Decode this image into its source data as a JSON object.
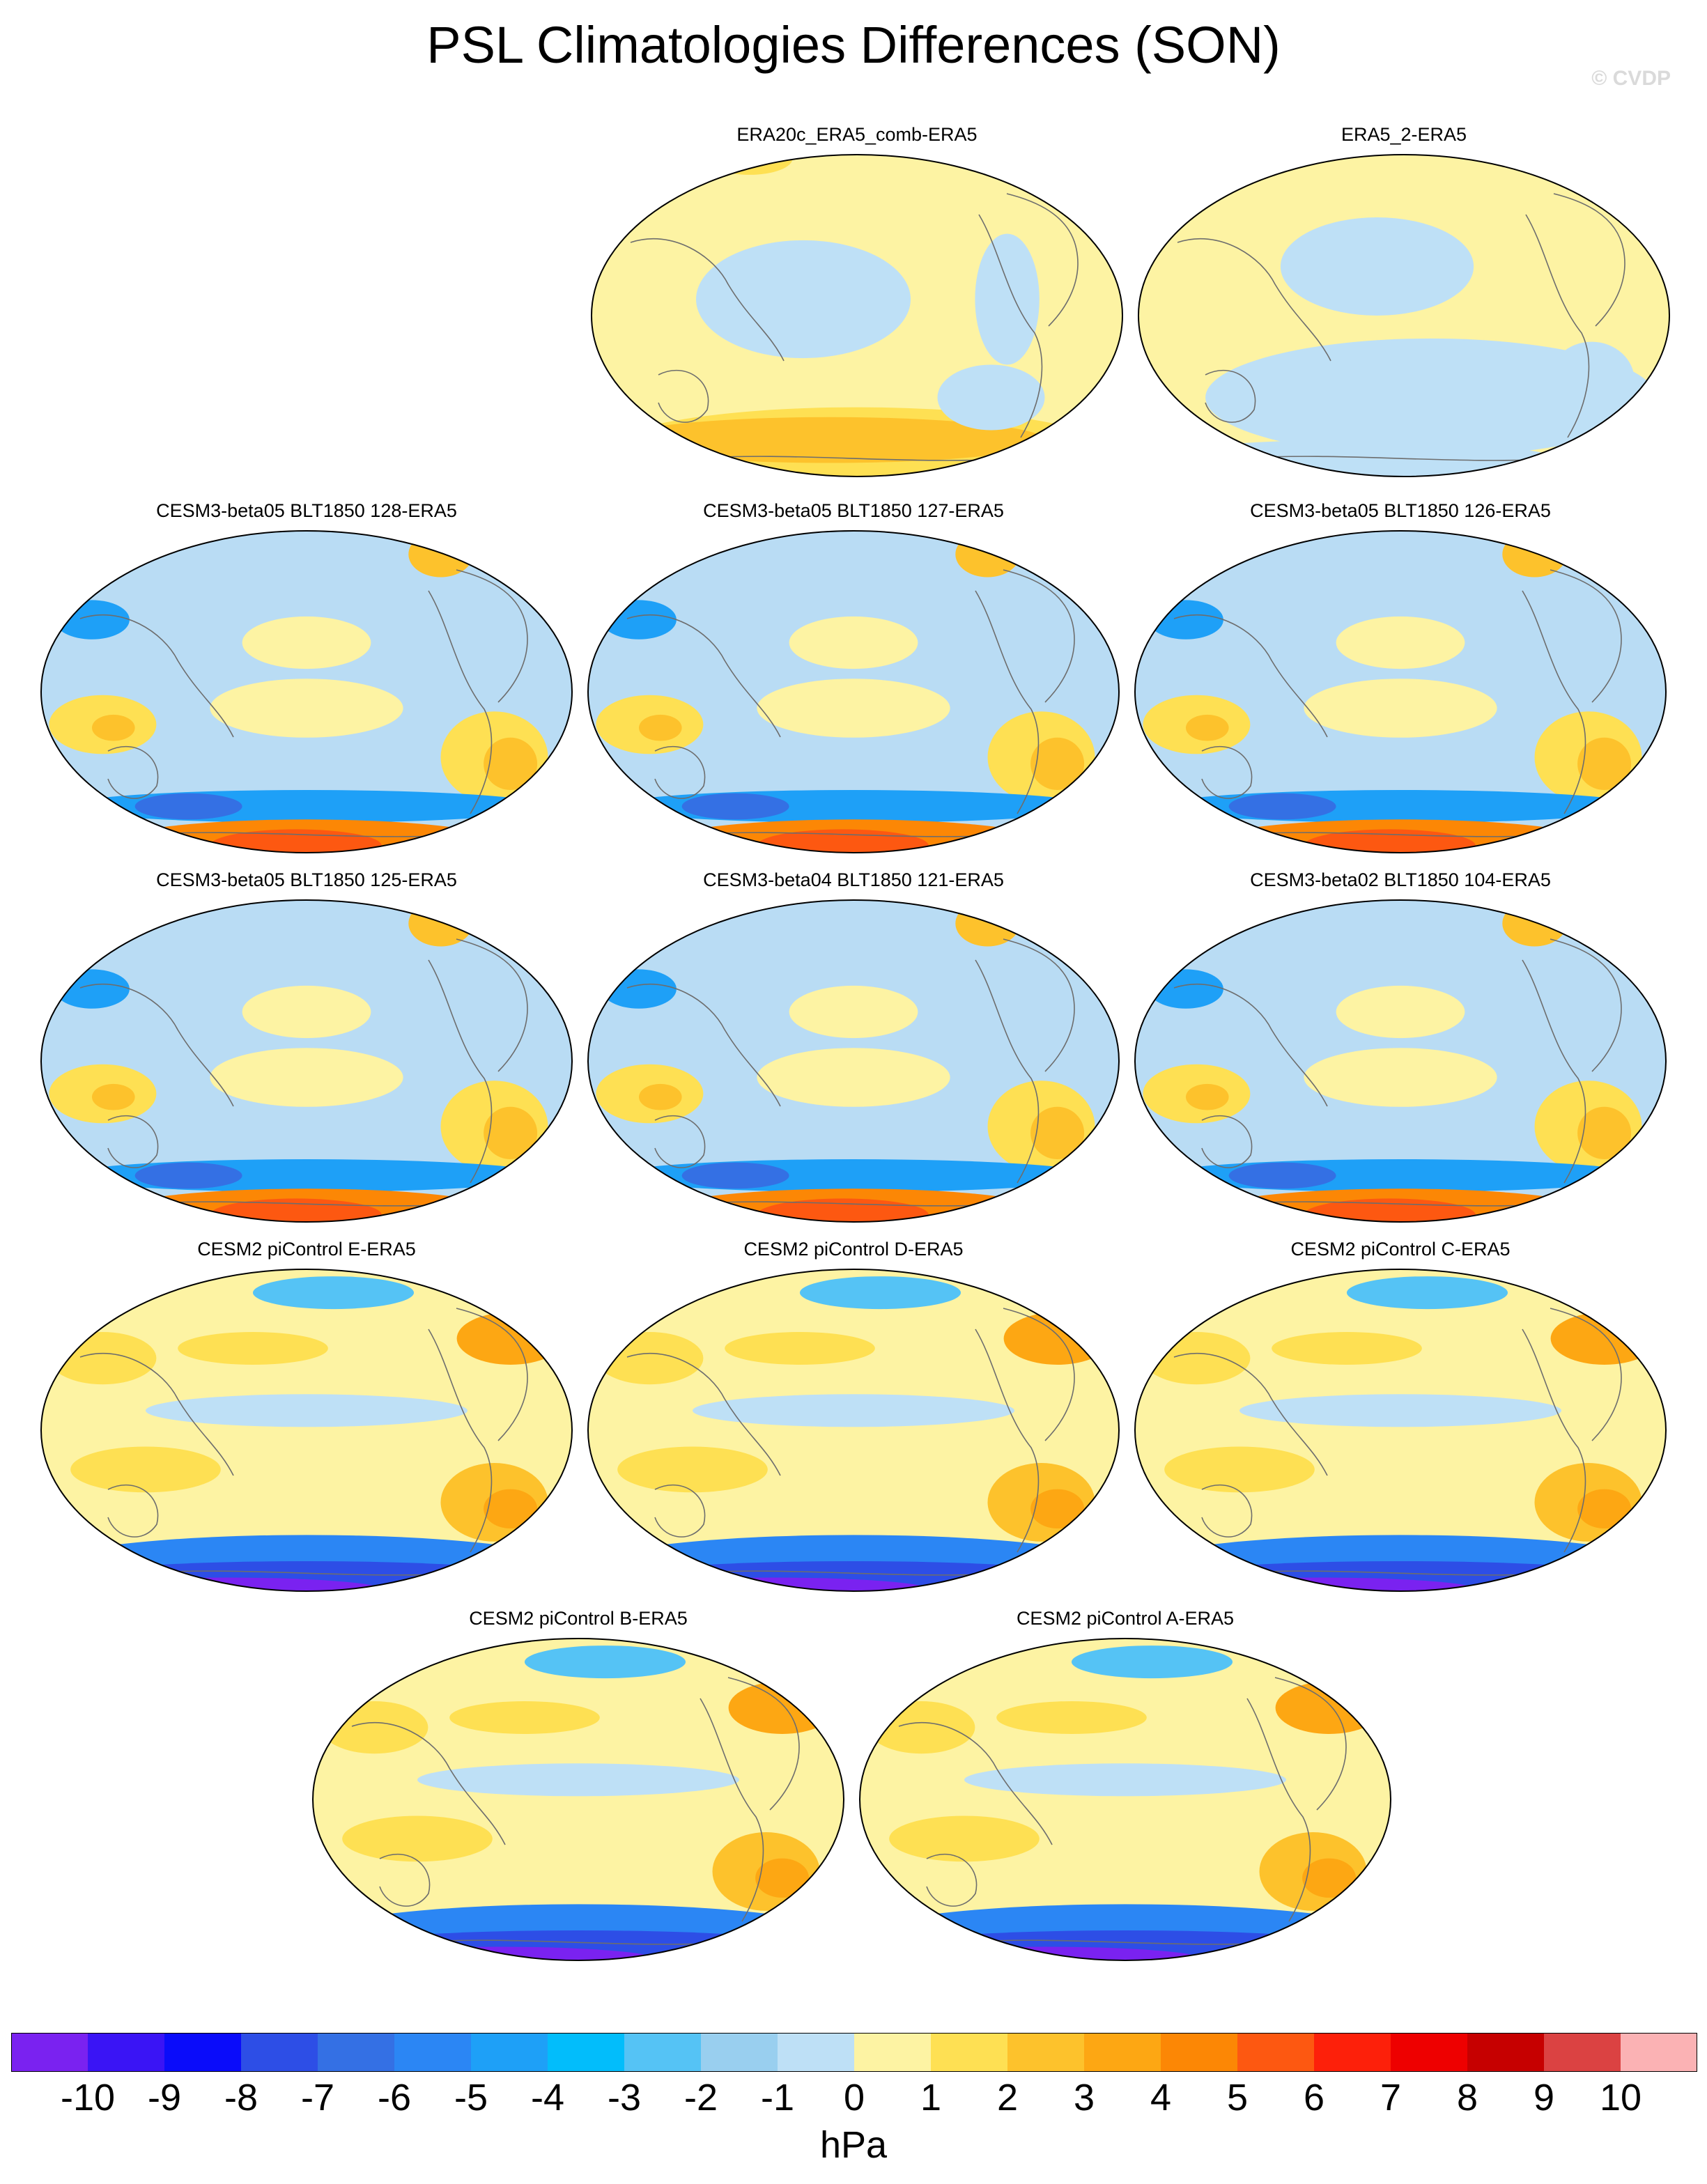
{
  "title": "PSL Climatologies Differences (SON)",
  "watermark": "© CVDP",
  "panels": [
    {
      "label": "ERA20c_ERA5_comb-ERA5",
      "bg": "#fdf3a3",
      "pattern": "reanalysis20c"
    },
    {
      "label": "ERA5_2-ERA5",
      "bg": "#fdf3a3",
      "pattern": "reanalysis2"
    },
    {
      "label": "CESM3-beta05 BLT1850 128-ERA5",
      "bg": "#b9dcf4",
      "pattern": "cesm3"
    },
    {
      "label": "CESM3-beta05 BLT1850 127-ERA5",
      "bg": "#b9dcf4",
      "pattern": "cesm3"
    },
    {
      "label": "CESM3-beta05 BLT1850 126-ERA5",
      "bg": "#b9dcf4",
      "pattern": "cesm3"
    },
    {
      "label": "CESM3-beta05 BLT1850 125-ERA5",
      "bg": "#b9dcf4",
      "pattern": "cesm3"
    },
    {
      "label": "CESM3-beta04 BLT1850 121-ERA5",
      "bg": "#b9dcf4",
      "pattern": "cesm3"
    },
    {
      "label": "CESM3-beta02 BLT1850 104-ERA5",
      "bg": "#b9dcf4",
      "pattern": "cesm3"
    },
    {
      "label": "CESM2 piControl E-ERA5",
      "bg": "#fdf3a3",
      "pattern": "cesm2"
    },
    {
      "label": "CESM2 piControl D-ERA5",
      "bg": "#fdf3a3",
      "pattern": "cesm2"
    },
    {
      "label": "CESM2 piControl C-ERA5",
      "bg": "#fdf3a3",
      "pattern": "cesm2"
    },
    {
      "label": "CESM2 piControl B-ERA5",
      "bg": "#fdf3a3",
      "pattern": "cesm2"
    },
    {
      "label": "CESM2 piControl A-ERA5",
      "bg": "#fdf3a3",
      "pattern": "cesm2"
    }
  ],
  "colorbar": {
    "colors": [
      "#7a22f0",
      "#3a14f5",
      "#0a0cfa",
      "#2d4ee6",
      "#3470e4",
      "#2b86f4",
      "#1ea0f7",
      "#02bdfb",
      "#55c3f5",
      "#99cfef",
      "#bee0f6",
      "#fdf3a3",
      "#fee053",
      "#fdc22c",
      "#fda713",
      "#fc8705",
      "#fd5811",
      "#fd200a",
      "#ee0000",
      "#c60000",
      "#db4242",
      "#fbb2b4"
    ],
    "labels": [
      "-10",
      "-9",
      "-8",
      "-7",
      "-6",
      "-5",
      "-4",
      "-3",
      "-2",
      "-1",
      "0",
      "1",
      "2",
      "3",
      "4",
      "5",
      "6",
      "7",
      "8",
      "9",
      "10"
    ],
    "units": "hPa"
  }
}
